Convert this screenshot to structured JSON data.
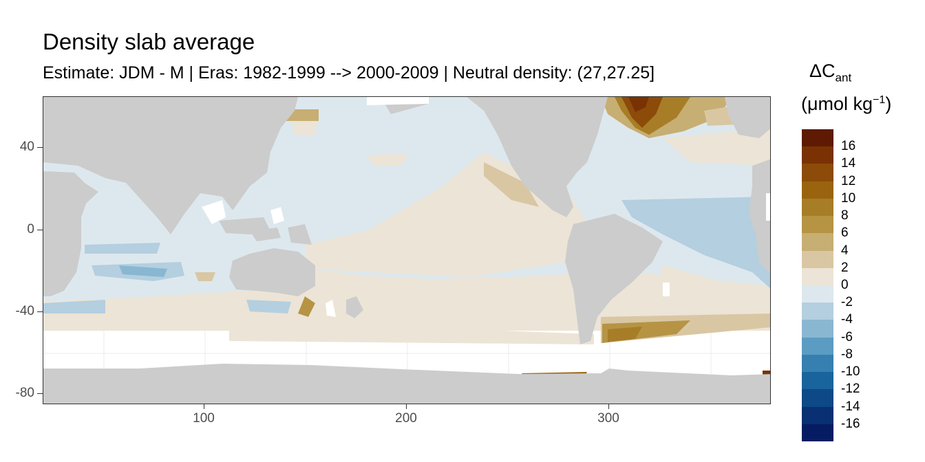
{
  "title": "Density slab average",
  "subtitle": "Estimate: JDM - M | Eras: 1982-1999 --> 2000-2009 | Neutral density: (27,27.25]",
  "legend": {
    "title_main": "ΔC",
    "title_sub": "ant",
    "unit_prefix": "(μmol kg",
    "unit_sup": "−1",
    "unit_suffix": ")",
    "labels": [
      "16",
      "14",
      "12",
      "10",
      "8",
      "6",
      "4",
      "2",
      "0",
      "-2",
      "-4",
      "-6",
      "-8",
      "-10",
      "-12",
      "-14",
      "-16"
    ],
    "colors": [
      "#5e1a02",
      "#7a3204",
      "#8c4b09",
      "#9a640f",
      "#a77d27",
      "#b69444",
      "#c7ae72",
      "#d9c7a3",
      "#ece4d6",
      "#dde8ee",
      "#b4cfdf",
      "#89b7d2",
      "#5b9cc3",
      "#3580b1",
      "#19649d",
      "#0c4986",
      "#083073",
      "#061c62"
    ]
  },
  "axes": {
    "x_ticks": [
      "100",
      "200",
      "300"
    ],
    "y_ticks": [
      "40",
      "0",
      "-40",
      "-80"
    ],
    "x_range": [
      20,
      380
    ],
    "y_range": [
      -85,
      65
    ]
  },
  "colors": {
    "land": "#cccccc",
    "ocean_default": "#dde8ee",
    "no_data": "#ffffff",
    "panel_border": "#333333"
  }
}
